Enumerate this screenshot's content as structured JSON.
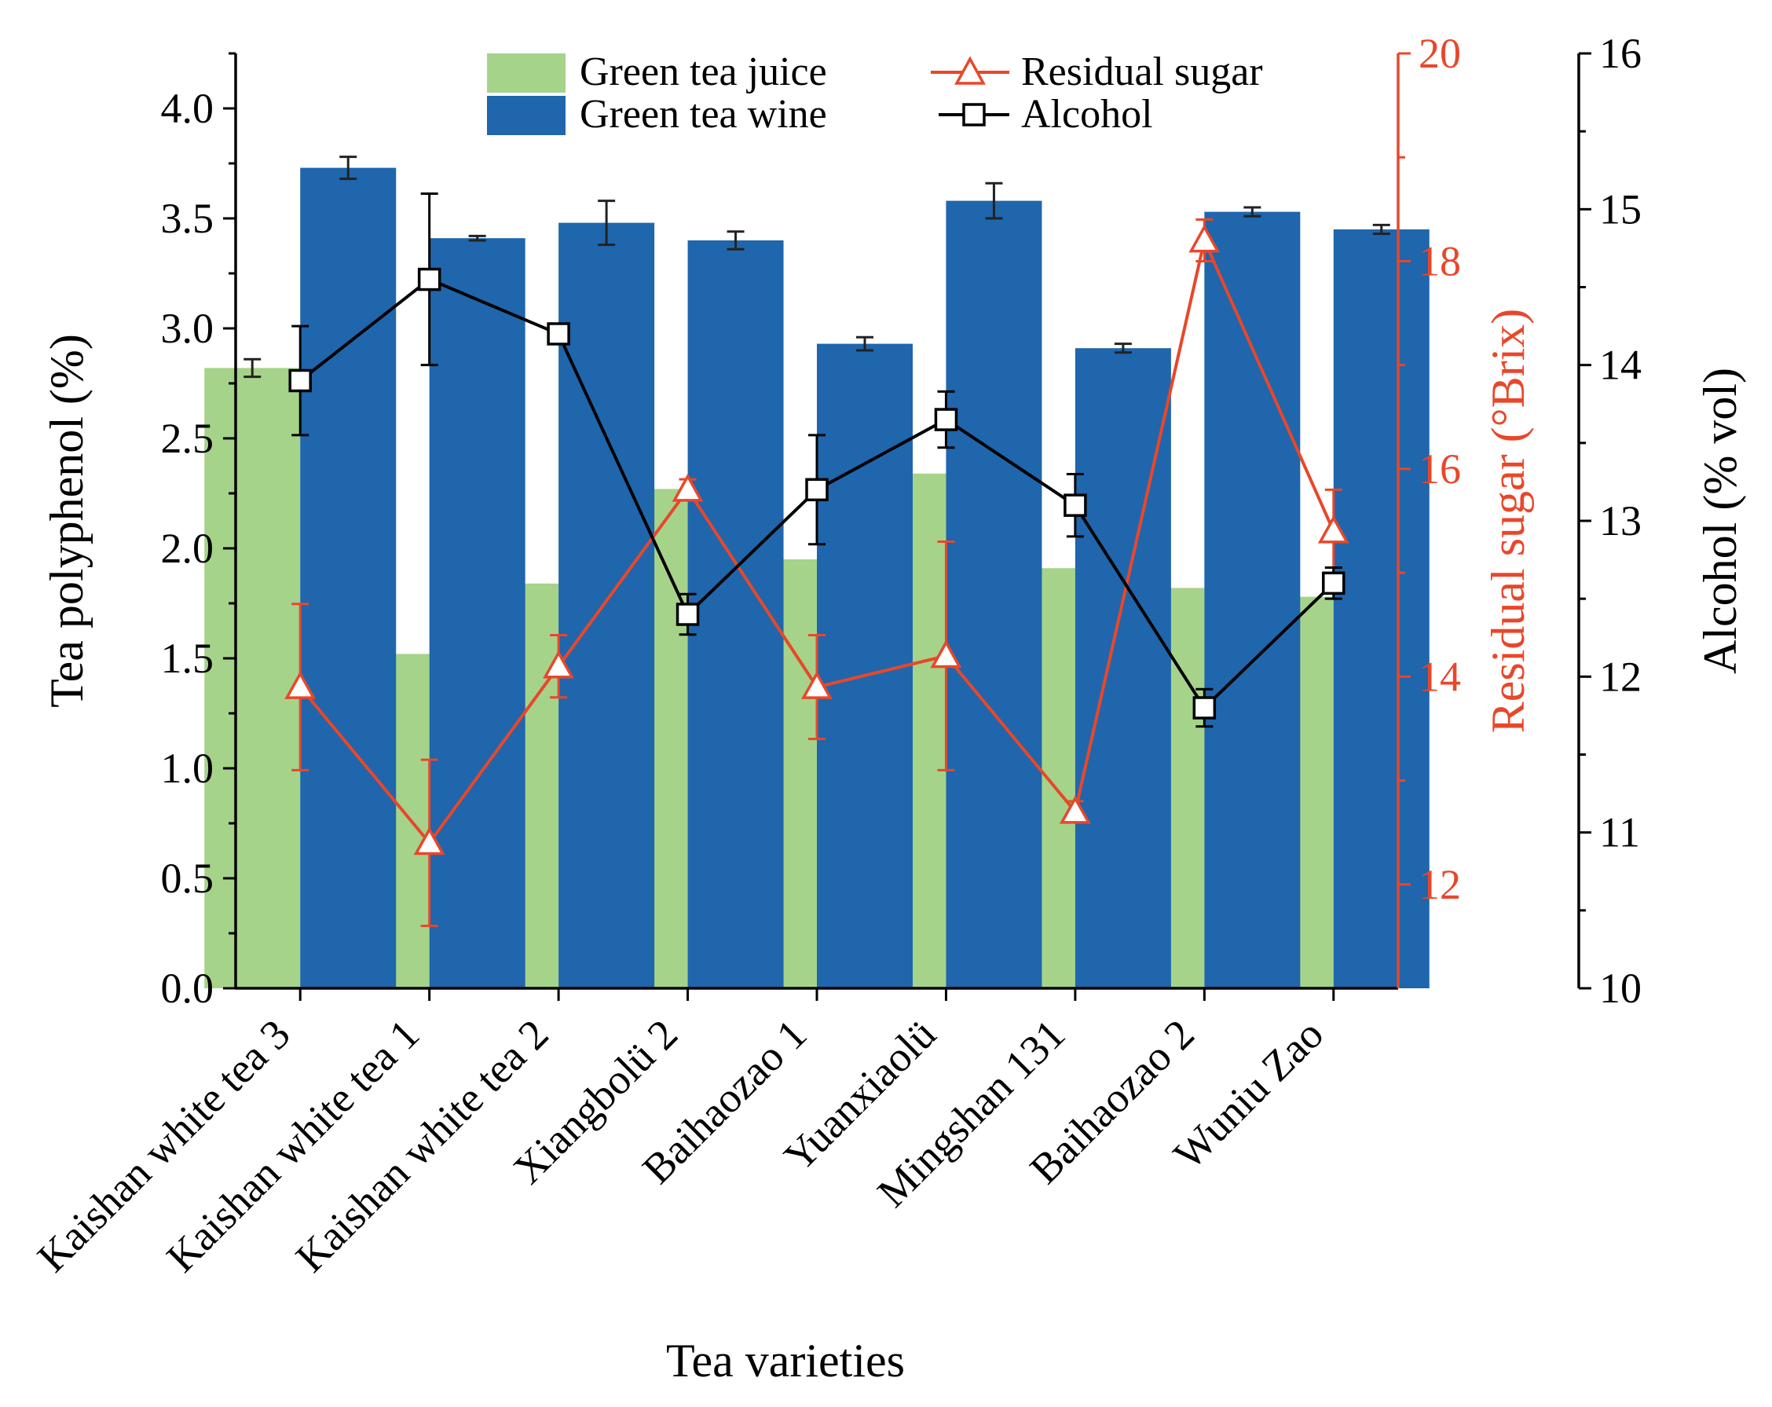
{
  "chart_data": {
    "type": "bar",
    "categories": [
      "Kaishan white tea 3",
      "Kaishan white tea 1",
      "Kaishan white tea 2",
      "Xiangbolü 2",
      "Baihaozao 1",
      "Yuanxiaolü",
      "Mingshan 131",
      "Baihaozao 2",
      "Wuniu Zao"
    ],
    "xlabel": "Tea varieties",
    "y_left": {
      "label": "Tea polyphenol (%)",
      "lim": [
        0,
        4.25
      ],
      "ticks": [
        "0.0",
        "0.5",
        "1.0",
        "1.5",
        "2.0",
        "2.5",
        "3.0",
        "3.5",
        "4.0"
      ]
    },
    "y_right1": {
      "label": "Residual sugar (°Brix)",
      "lim": [
        11,
        20
      ],
      "ticks": [
        "12",
        "14",
        "16",
        "18",
        "20"
      ],
      "color": "#e8472a"
    },
    "y_right2": {
      "label": "Alcohol (% vol)",
      "lim": [
        10,
        16
      ],
      "ticks": [
        "10",
        "11",
        "12",
        "13",
        "14",
        "15",
        "16"
      ]
    },
    "series": [
      {
        "name": "Green tea juice",
        "kind": "bar",
        "axis": "left",
        "color": "#a6d38a",
        "values": [
          2.82,
          1.52,
          1.84,
          2.27,
          1.95,
          2.34,
          1.91,
          1.82,
          1.78
        ],
        "errors": [
          0.04,
          0.03,
          0.02,
          0.02,
          0.05,
          0.06,
          0.05,
          0.04,
          0.05
        ]
      },
      {
        "name": "Green tea wine",
        "kind": "bar",
        "axis": "left",
        "color": "#1f66ac",
        "values": [
          3.73,
          3.41,
          3.48,
          3.4,
          2.93,
          3.58,
          2.91,
          3.53,
          3.45
        ],
        "errors": [
          0.05,
          0.01,
          0.1,
          0.04,
          0.03,
          0.08,
          0.02,
          0.02,
          0.02
        ]
      },
      {
        "name": "Residual sugar",
        "kind": "line",
        "axis": "right1",
        "color": "#e8472a",
        "marker": "triangle",
        "values": [
          13.9,
          12.4,
          14.1,
          15.8,
          13.9,
          14.2,
          12.7,
          18.2,
          15.4
        ],
        "errors": [
          0.8,
          0.8,
          0.3,
          0.1,
          0.5,
          1.1,
          0.1,
          0.2,
          0.4
        ]
      },
      {
        "name": "Alcohol",
        "kind": "line",
        "axis": "right2",
        "color": "#000000",
        "marker": "square",
        "values": [
          13.9,
          14.55,
          14.2,
          12.4,
          13.2,
          13.65,
          13.1,
          11.8,
          12.6
        ],
        "errors": [
          0.35,
          0.55,
          0.0,
          0.13,
          0.35,
          0.18,
          0.2,
          0.12,
          0.1
        ]
      }
    ],
    "legend": {
      "placement": "top-center",
      "entries": [
        "Green tea juice",
        "Green tea wine",
        "Residual sugar",
        "Alcohol"
      ]
    }
  }
}
